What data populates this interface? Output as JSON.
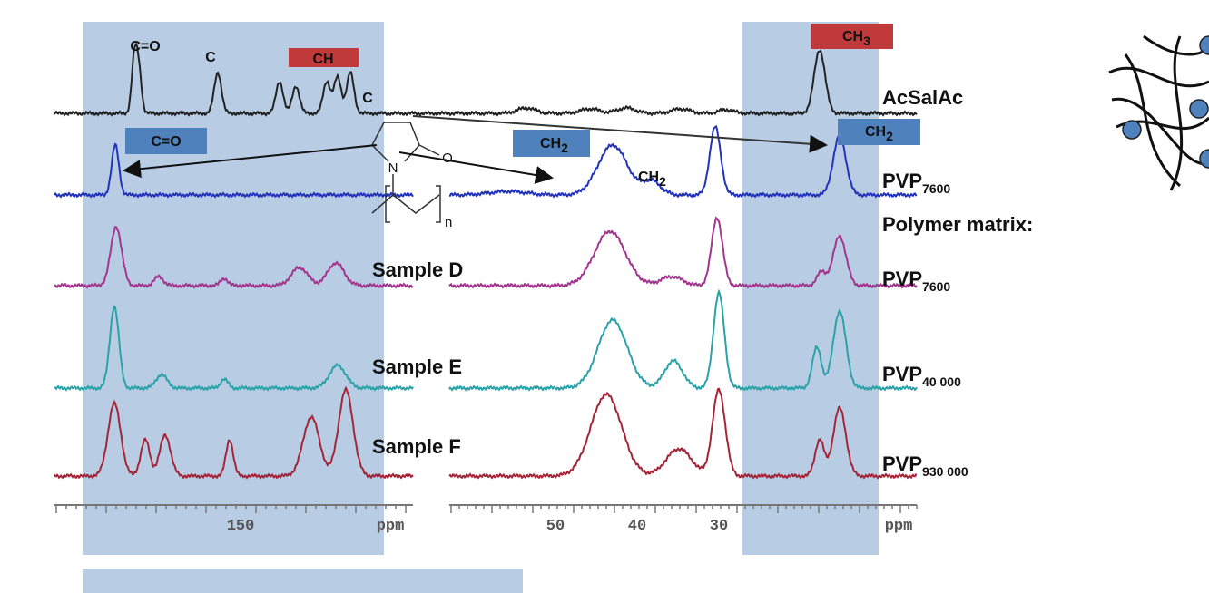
{
  "peak_labels": {
    "co_top": "C=O",
    "c_top": "C",
    "ch_top": "CH",
    "c_right": "C",
    "ch3_box": {
      "base": "CH",
      "sub": "3"
    },
    "co_box": "C=O",
    "ch2_box_mid": {
      "base": "CH",
      "sub": "2"
    },
    "ch2_mid": {
      "base": "CH",
      "sub": "2"
    },
    "ch2_box_right": {
      "base": "CH",
      "sub": "2"
    }
  },
  "molecule": {
    "n_atom": "N",
    "o_atom": "O",
    "repeat": "n"
  },
  "spectra": [
    {
      "label": "AcSalAc"
    },
    {
      "label": {
        "base": "PVP",
        "sub": "7600"
      }
    },
    {
      "sample": "Sample D",
      "label": {
        "base": "PVP",
        "sub": "7600"
      }
    },
    {
      "sample": "Sample E",
      "label": {
        "base": "PVP",
        "sub": "40 000"
      }
    },
    {
      "sample": "Sample F",
      "label": {
        "base": "PVP",
        "sub": "930 000"
      }
    }
  ],
  "polymer_matrix": "Polymer matrix:",
  "axes": {
    "left": {
      "ticks": [
        "150"
      ],
      "unit": "ppm"
    },
    "right": {
      "ticks": [
        "50",
        "40",
        "30"
      ],
      "unit": "ppm"
    }
  }
}
